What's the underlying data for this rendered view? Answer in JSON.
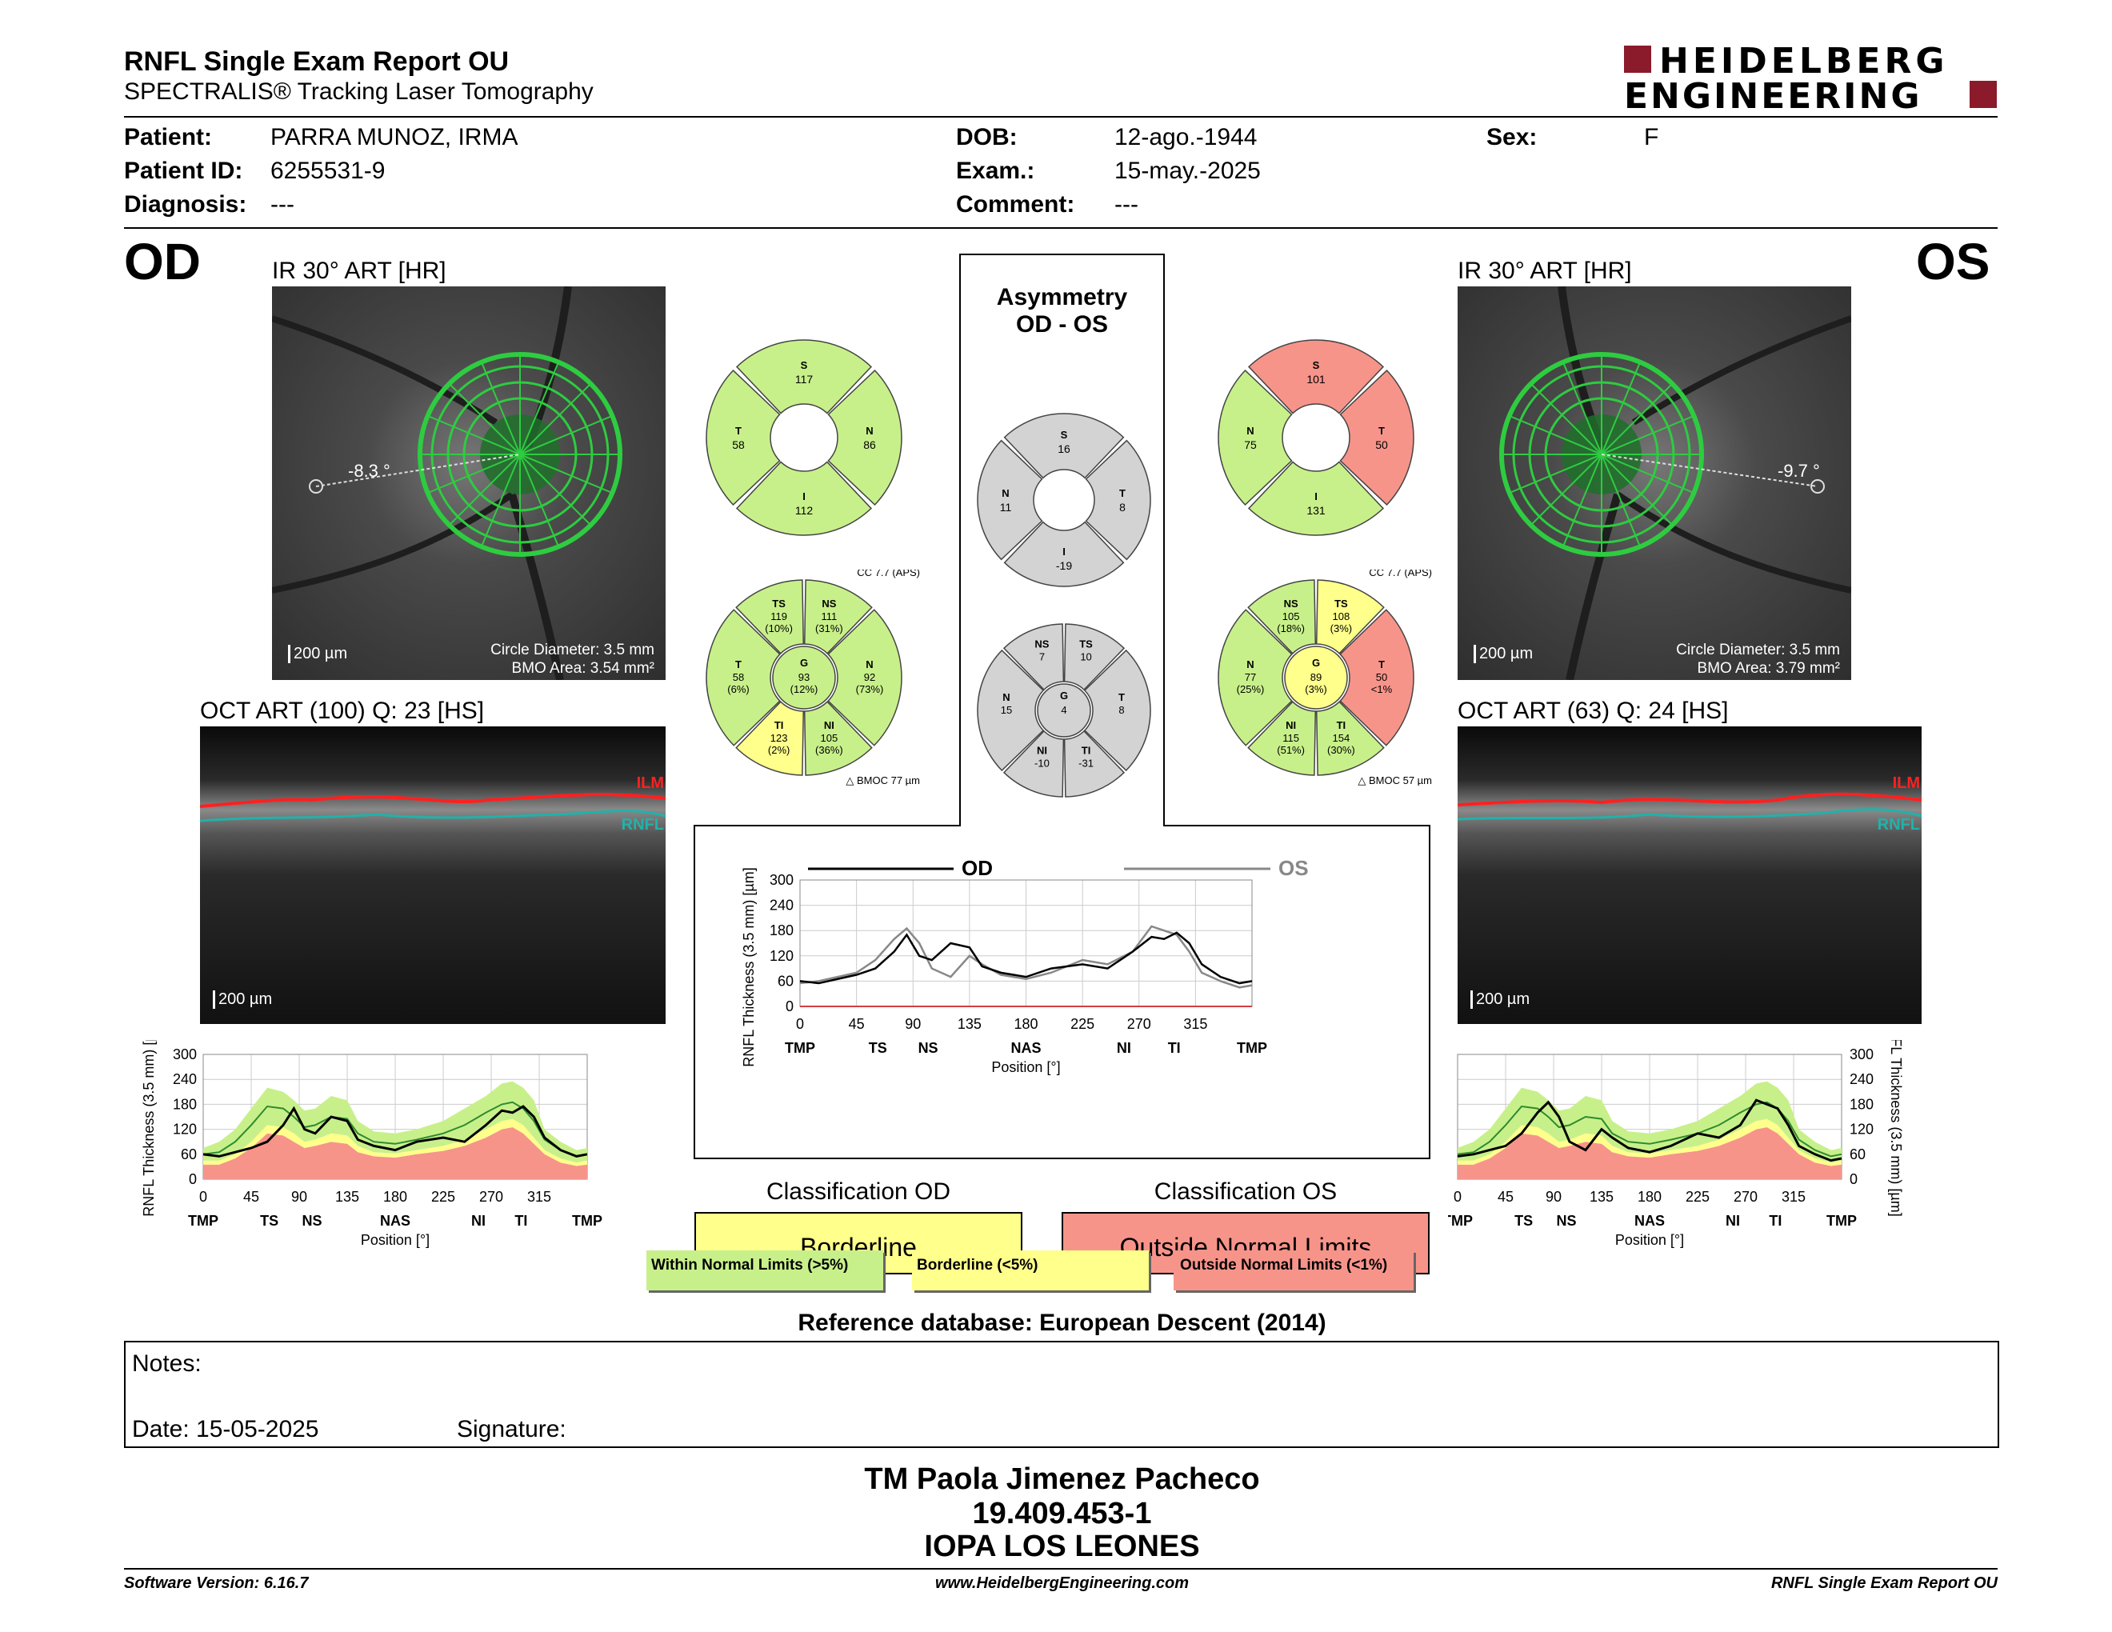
{
  "header": {
    "title": "RNFL Single Exam Report OU",
    "subtitle": "SPECTRALIS® Tracking Laser Tomography",
    "logo_line1": "HEIDELBERG",
    "logo_line2": "ENGINEERING"
  },
  "patient": {
    "patient_label": "Patient:",
    "patient_value": "PARRA MUNOZ, IRMA",
    "id_label": "Patient ID:",
    "id_value": "6255531-9",
    "diagnosis_label": "Diagnosis:",
    "diagnosis_value": "---",
    "dob_label": "DOB:",
    "dob_value": "12-ago.-1944",
    "exam_label": "Exam.:",
    "exam_value": "15-may.-2025",
    "comment_label": "Comment:",
    "comment_value": "---",
    "sex_label": "Sex:",
    "sex_value": "F"
  },
  "od": {
    "eye": "OD",
    "ir_title": "IR 30° ART [HR]",
    "angle": "-8.3 °",
    "scale": "200 µm",
    "circle_diameter": "Circle Diameter: 3.5 mm",
    "bmo_area": "BMO Area: 3.54 mm²",
    "oct_title": "OCT ART (100) Q: 23 [HS]",
    "oct_scale": "200 µm",
    "ilm": "ILM",
    "rnfl": "RNFL",
    "classification_title": "Classification OD",
    "classification": "Borderline",
    "quadrants": {
      "S": "117",
      "N": "86",
      "I": "112",
      "T": "58"
    },
    "sectors": {
      "cc": "CC 7.7 (APS)",
      "TS": [
        "119",
        "(10%)"
      ],
      "NS": [
        "111",
        "(31%)"
      ],
      "T": [
        "58",
        "(6%)"
      ],
      "G": [
        "93",
        "(12%)"
      ],
      "N": [
        "92",
        "(73%)"
      ],
      "TI": [
        "123",
        "(2%)"
      ],
      "NI": [
        "105",
        "(36%)"
      ],
      "bmo": "BMOC 77 µm"
    }
  },
  "os": {
    "eye": "OS",
    "ir_title": "IR 30° ART [HR]",
    "angle": "-9.7 °",
    "scale": "200 µm",
    "circle_diameter": "Circle Diameter: 3.5 mm",
    "bmo_area": "BMO Area: 3.79 mm²",
    "oct_title": "OCT ART (63) Q: 24 [HS]",
    "oct_scale": "200 µm",
    "ilm": "ILM",
    "rnfl": "RNFL",
    "classification_title": "Classification OS",
    "classification": "Outside Normal Limits",
    "quadrants": {
      "S": "101",
      "N": "75",
      "I": "131",
      "T": "50"
    },
    "sectors": {
      "cc": "CC 7.7 (APS)",
      "NS": [
        "105",
        "(18%)"
      ],
      "TS": [
        "108",
        "(3%)"
      ],
      "N": [
        "77",
        "(25%)"
      ],
      "G": [
        "89",
        "(3%)"
      ],
      "T": [
        "50",
        "<1%"
      ],
      "NI": [
        "115",
        "(51%)"
      ],
      "TI": [
        "154",
        "(30%)"
      ],
      "bmo": "BMOC 57 µm"
    }
  },
  "asymmetry": {
    "title1": "Asymmetry",
    "title2": "OD - OS",
    "quadrants": {
      "S": "16",
      "N": "11",
      "T": "8",
      "I": "-19"
    },
    "sectors": {
      "NS": "7",
      "TS": "10",
      "N": "15",
      "G": "4",
      "T": "8",
      "NI": "-10",
      "TI": "-31"
    }
  },
  "compare_chart": {
    "legend_od": "OD",
    "legend_os": "OS",
    "ylabel": "RNFL Thickness (3.5 mm) [µm]",
    "xlabel": "Position [°]"
  },
  "legend": {
    "within": "Within Normal Limits (>5%)",
    "borderline": "Borderline (<5%)",
    "outside": "Outside Normal Limits (<1%)"
  },
  "reference": "Reference database: European Descent (2014)",
  "notes": {
    "notes_label": "Notes:",
    "date_label": "Date: 15-05-2025",
    "signature_label": "Signature:"
  },
  "signature_block": {
    "name": "TM Paola Jimenez Pacheco",
    "rut": "19.409.453-1",
    "institution": "IOPA LOS LEONES"
  },
  "footer": {
    "software": "Software Version: 6.16.7",
    "website": "www.HeidelbergEngineering.com",
    "report": "RNFL Single Exam Report OU"
  },
  "colors": {
    "normal": "#c8f08a",
    "borderline": "#ffff8c",
    "outside": "#f7948a",
    "gray": "#d3d3d3",
    "logo": "#8b1a2b"
  },
  "chart_data": [
    {
      "type": "line",
      "title": "",
      "xlabel": "Position [°]",
      "ylabel": "RNFL Thickness (3.5 mm) [µm]",
      "xlim": [
        0,
        360
      ],
      "ylim": [
        0,
        300
      ],
      "xticks": [
        0,
        45,
        90,
        135,
        180,
        225,
        270,
        315
      ],
      "yticks": [
        0,
        60,
        120,
        180,
        240,
        300
      ],
      "sector_labels": [
        "TMP",
        "TS",
        "NS",
        "NAS",
        "NI",
        "TI",
        "TMP"
      ],
      "sector_positions": [
        0,
        62,
        102,
        180,
        258,
        298,
        360
      ],
      "x": [
        0,
        15,
        30,
        45,
        60,
        75,
        85,
        95,
        105,
        120,
        135,
        145,
        160,
        180,
        200,
        225,
        245,
        265,
        280,
        290,
        300,
        310,
        320,
        335,
        350,
        360
      ],
      "series": [
        {
          "name": "OD",
          "values": [
            60,
            55,
            65,
            75,
            90,
            130,
            170,
            120,
            110,
            150,
            140,
            95,
            80,
            70,
            90,
            100,
            90,
            130,
            165,
            160,
            175,
            150,
            100,
            70,
            55,
            60
          ]
        },
        {
          "name": "OS",
          "values": [
            55,
            60,
            70,
            80,
            110,
            160,
            185,
            150,
            90,
            70,
            120,
            100,
            75,
            65,
            80,
            110,
            100,
            130,
            190,
            180,
            170,
            130,
            80,
            60,
            45,
            50
          ]
        }
      ],
      "normal_upper": [
        75,
        90,
        120,
        170,
        220,
        210,
        190,
        165,
        170,
        200,
        190,
        140,
        115,
        110,
        120,
        140,
        170,
        200,
        230,
        235,
        220,
        190,
        120,
        90,
        70,
        75
      ],
      "normal_mean": [
        60,
        65,
        90,
        130,
        175,
        170,
        150,
        125,
        130,
        150,
        145,
        110,
        90,
        85,
        95,
        110,
        130,
        160,
        180,
        185,
        170,
        140,
        95,
        70,
        55,
        60
      ],
      "normal_lower_5": [
        45,
        45,
        60,
        90,
        130,
        125,
        110,
        90,
        95,
        110,
        105,
        80,
        65,
        62,
        70,
        80,
        95,
        120,
        140,
        145,
        130,
        100,
        70,
        50,
        40,
        45
      ],
      "normal_lower_1": [
        35,
        35,
        50,
        75,
        110,
        105,
        90,
        75,
        80,
        90,
        85,
        65,
        55,
        52,
        60,
        68,
        80,
        100,
        120,
        125,
        110,
        85,
        60,
        40,
        32,
        35
      ]
    }
  ]
}
